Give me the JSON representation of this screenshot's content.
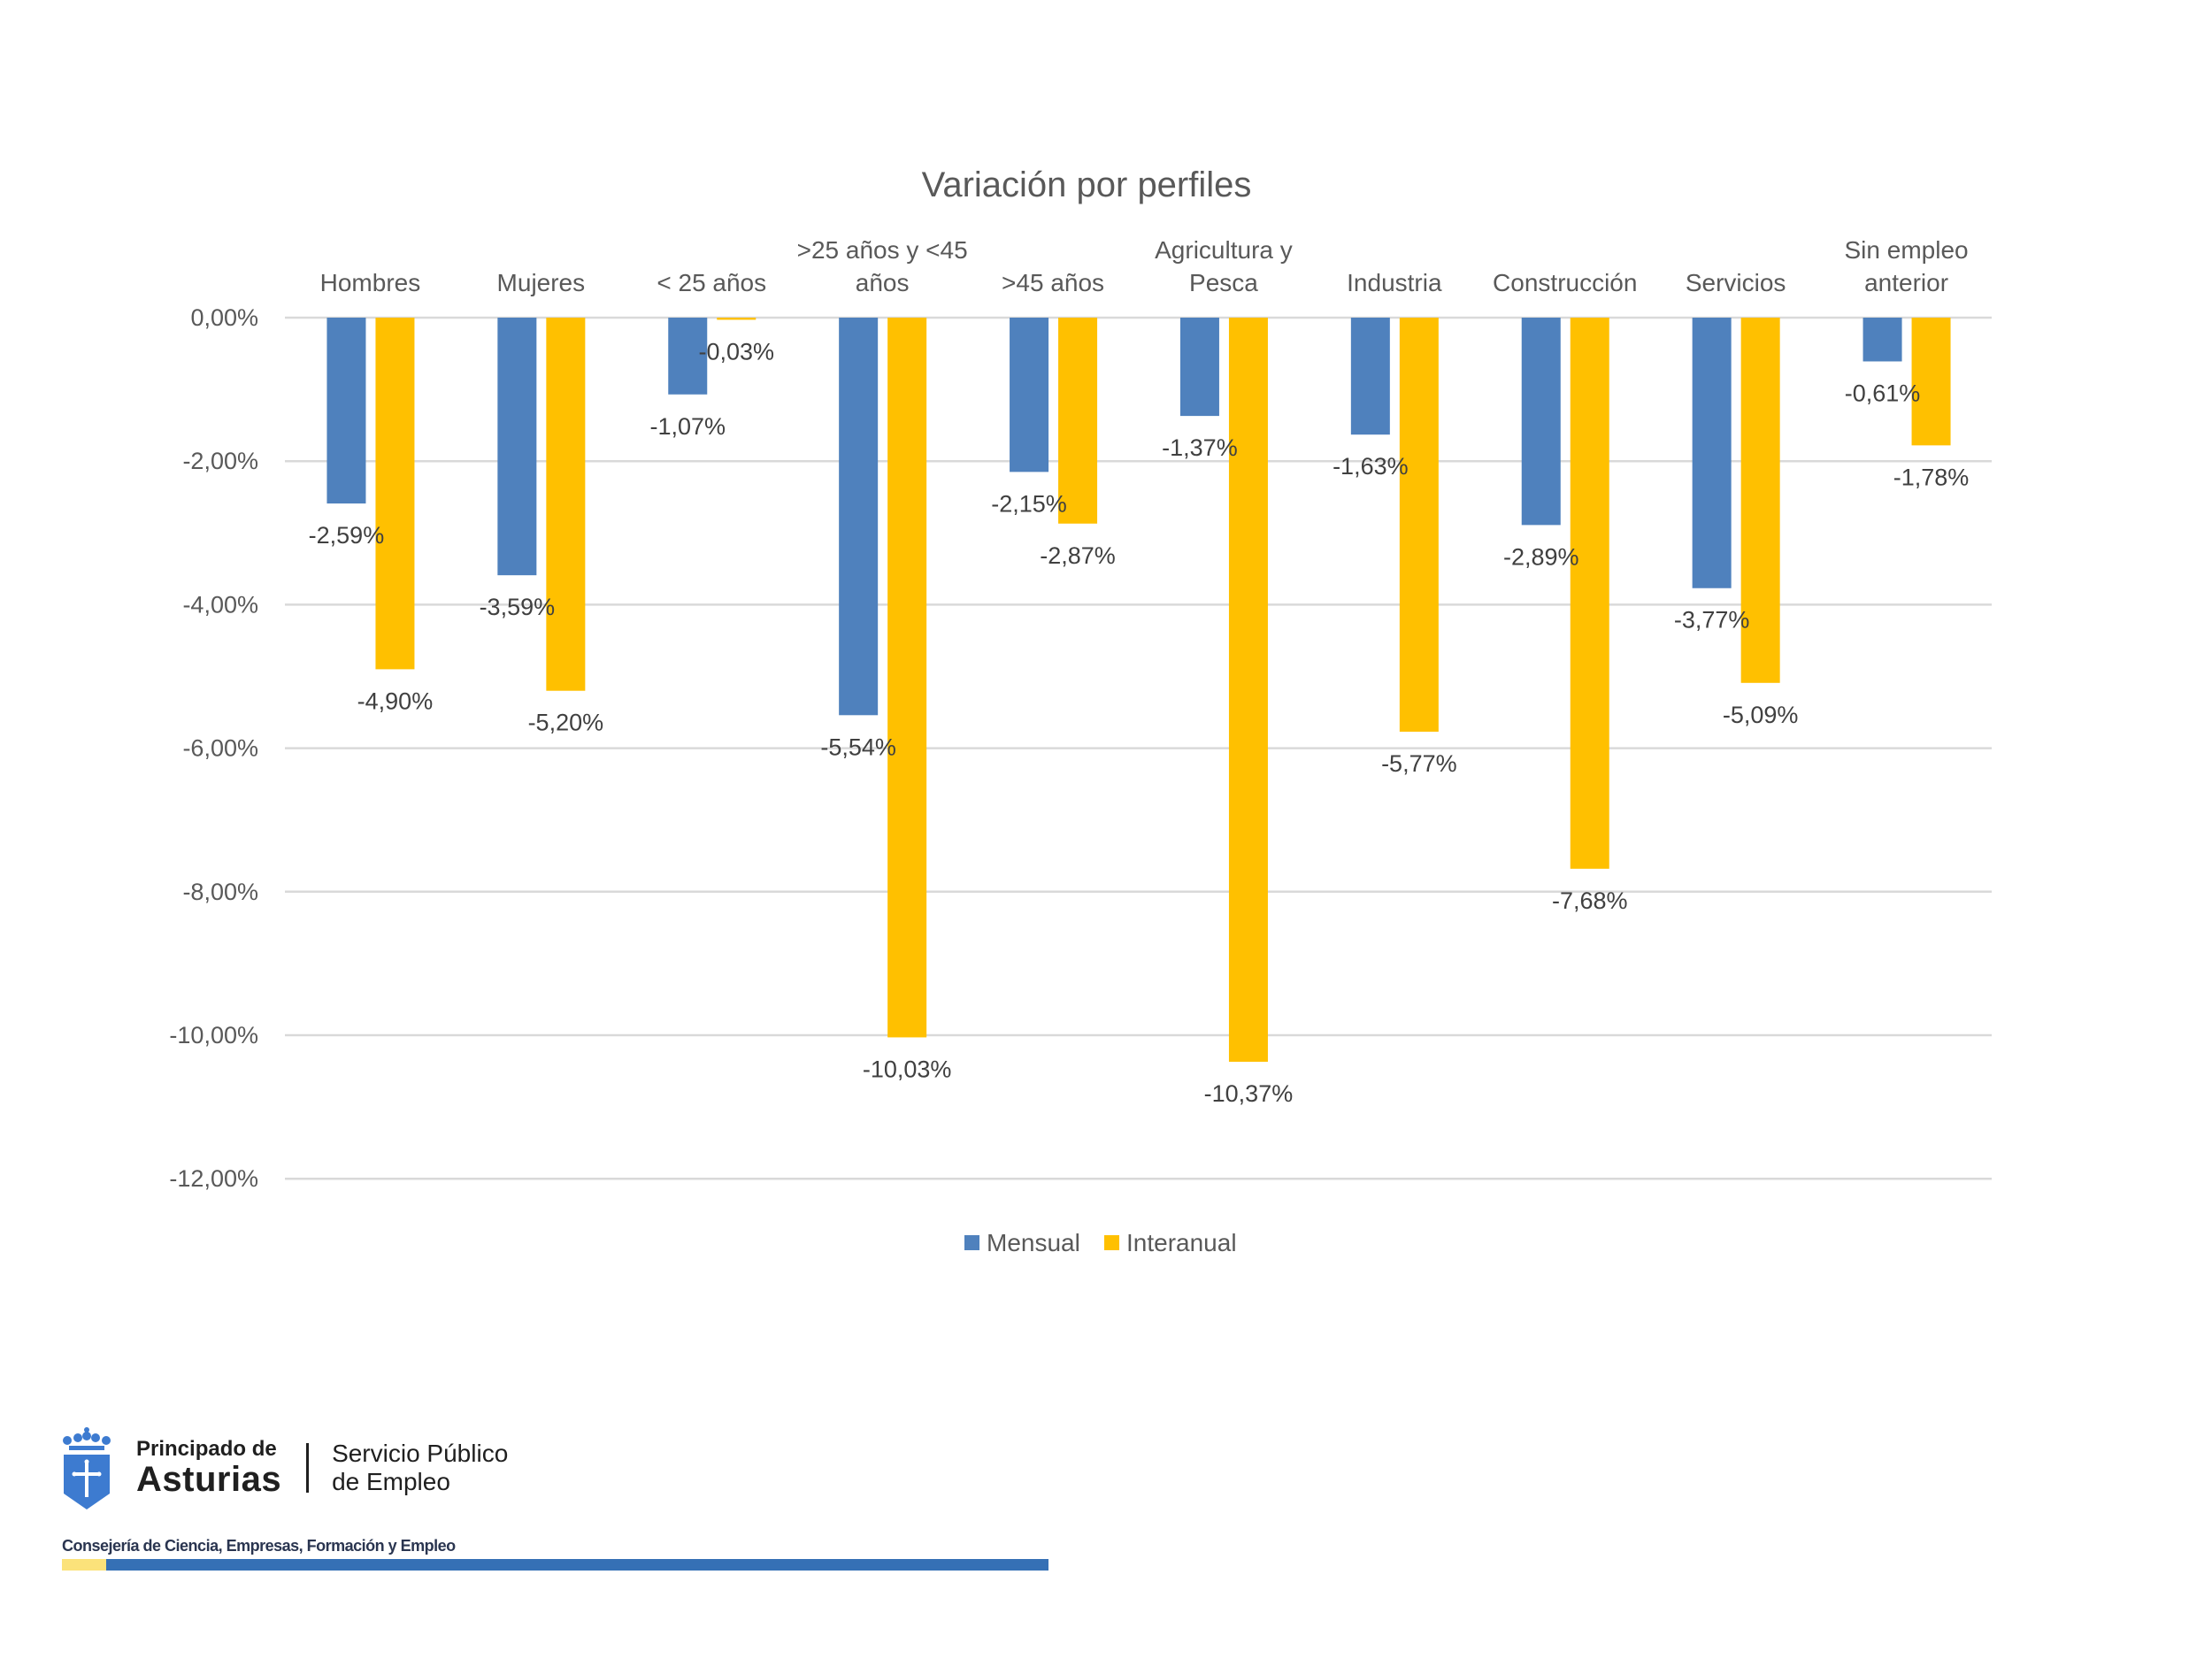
{
  "chart_data": {
    "type": "bar",
    "title": "Variación por perfiles",
    "categories": [
      "Hombres",
      "Mujeres",
      "< 25 años",
      ">25 años y <45 años",
      ">45 años",
      "Agricultura y Pesca",
      "Industria",
      "Construcción",
      "Servicios",
      "Sin empleo anterior"
    ],
    "category_label_lines": [
      [
        "Hombres"
      ],
      [
        "Mujeres"
      ],
      [
        "< 25 años"
      ],
      [
        ">25 años y <45",
        "años"
      ],
      [
        ">45 años"
      ],
      [
        "Agricultura y",
        "Pesca"
      ],
      [
        "Industria"
      ],
      [
        "Construcción"
      ],
      [
        "Servicios"
      ],
      [
        "Sin empleo",
        "anterior"
      ]
    ],
    "series": [
      {
        "name": "Mensual",
        "color": "#4f81bd",
        "values": [
          -2.59,
          -3.59,
          -1.07,
          -5.54,
          -2.15,
          -1.37,
          -1.63,
          -2.89,
          -3.77,
          -0.61
        ],
        "labels": [
          "-2,59%",
          "-3,59%",
          "-1,07%",
          "-5,54%",
          "-2,15%",
          "-1,37%",
          "-1,63%",
          "-2,89%",
          "-3,77%",
          "-0,61%"
        ]
      },
      {
        "name": "Interanual",
        "color": "#ffc000",
        "values": [
          -4.9,
          -5.2,
          -0.03,
          -10.03,
          -2.87,
          -10.37,
          -5.77,
          -7.68,
          -5.09,
          -1.78
        ],
        "labels": [
          "-4,90%",
          "-5,20%",
          "-0,03%",
          "-10,03%",
          "-2,87%",
          "-10,37%",
          "-5,77%",
          "-7,68%",
          "-5,09%",
          "-1,78%"
        ]
      }
    ],
    "xlabel": "",
    "ylabel": "",
    "ylim": [
      -12,
      0
    ],
    "yticks": [
      0,
      -2,
      -4,
      -6,
      -8,
      -10,
      -12
    ],
    "ytick_labels": [
      "0,00%",
      "-2,00%",
      "-4,00%",
      "-6,00%",
      "-8,00%",
      "-10,00%",
      "-12,00%"
    ],
    "x_axis_position": "top",
    "grid": true,
    "legend_position": "bottom"
  },
  "footer": {
    "org_line1": "Principado de",
    "org_line2": "Asturias",
    "service_line1": "Servicio Público",
    "service_line2": "de Empleo",
    "department": "Consejería de Ciencia, Empresas, Formación y Empleo",
    "colors": {
      "shield": "#3d7bd0",
      "bar_yellow": "#fbe27a",
      "bar_blue": "#3570b5"
    }
  }
}
